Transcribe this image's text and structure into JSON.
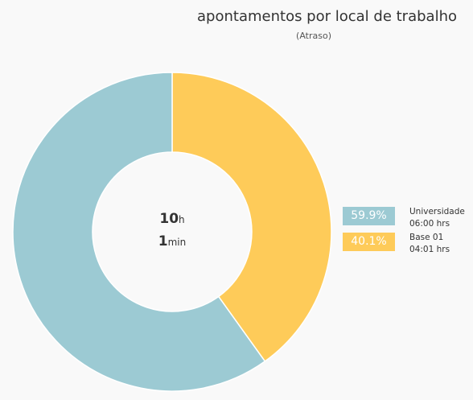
{
  "title": "apontamentos por local de trabalho",
  "subtitle": "(Atraso)",
  "center": {
    "hours_value": "10",
    "hours_unit": "h",
    "minutes_value": "1",
    "minutes_unit": "min"
  },
  "chart_data": {
    "type": "pie",
    "title": "apontamentos por local de trabalho",
    "subtitle": "(Atraso)",
    "donut": true,
    "legend_position": "right",
    "series": [
      {
        "name": "Universidade",
        "value": 59.9,
        "percent_label": "59.9%",
        "duration": "06:00 hrs",
        "color": "#9ccad3"
      },
      {
        "name": "Base 01",
        "value": 40.1,
        "percent_label": "40.1%",
        "duration": "04:01 hrs",
        "color": "#fecb59"
      }
    ]
  }
}
